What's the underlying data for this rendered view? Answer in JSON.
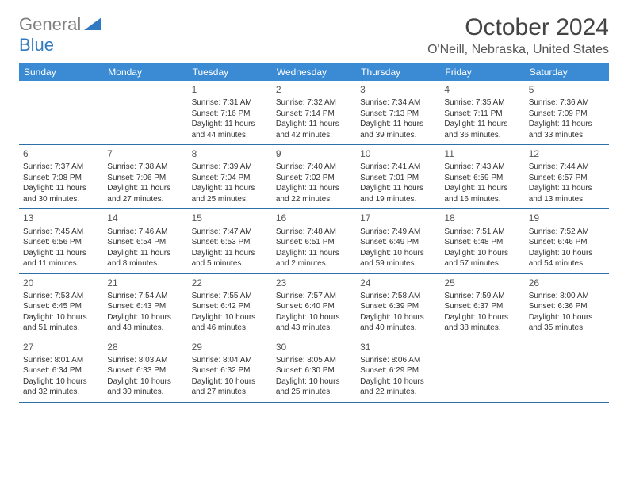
{
  "logo": {
    "general": "General",
    "blue": "Blue"
  },
  "title": "October 2024",
  "location": "O'Neill, Nebraska, United States",
  "header_bg": "#3b8bd4",
  "border_color": "#2f6fa8",
  "day_headers": [
    "Sunday",
    "Monday",
    "Tuesday",
    "Wednesday",
    "Thursday",
    "Friday",
    "Saturday"
  ],
  "weeks": [
    [
      null,
      null,
      {
        "n": "1",
        "sr": "Sunrise: 7:31 AM",
        "ss": "Sunset: 7:16 PM",
        "dl1": "Daylight: 11 hours",
        "dl2": "and 44 minutes."
      },
      {
        "n": "2",
        "sr": "Sunrise: 7:32 AM",
        "ss": "Sunset: 7:14 PM",
        "dl1": "Daylight: 11 hours",
        "dl2": "and 42 minutes."
      },
      {
        "n": "3",
        "sr": "Sunrise: 7:34 AM",
        "ss": "Sunset: 7:13 PM",
        "dl1": "Daylight: 11 hours",
        "dl2": "and 39 minutes."
      },
      {
        "n": "4",
        "sr": "Sunrise: 7:35 AM",
        "ss": "Sunset: 7:11 PM",
        "dl1": "Daylight: 11 hours",
        "dl2": "and 36 minutes."
      },
      {
        "n": "5",
        "sr": "Sunrise: 7:36 AM",
        "ss": "Sunset: 7:09 PM",
        "dl1": "Daylight: 11 hours",
        "dl2": "and 33 minutes."
      }
    ],
    [
      {
        "n": "6",
        "sr": "Sunrise: 7:37 AM",
        "ss": "Sunset: 7:08 PM",
        "dl1": "Daylight: 11 hours",
        "dl2": "and 30 minutes."
      },
      {
        "n": "7",
        "sr": "Sunrise: 7:38 AM",
        "ss": "Sunset: 7:06 PM",
        "dl1": "Daylight: 11 hours",
        "dl2": "and 27 minutes."
      },
      {
        "n": "8",
        "sr": "Sunrise: 7:39 AM",
        "ss": "Sunset: 7:04 PM",
        "dl1": "Daylight: 11 hours",
        "dl2": "and 25 minutes."
      },
      {
        "n": "9",
        "sr": "Sunrise: 7:40 AM",
        "ss": "Sunset: 7:02 PM",
        "dl1": "Daylight: 11 hours",
        "dl2": "and 22 minutes."
      },
      {
        "n": "10",
        "sr": "Sunrise: 7:41 AM",
        "ss": "Sunset: 7:01 PM",
        "dl1": "Daylight: 11 hours",
        "dl2": "and 19 minutes."
      },
      {
        "n": "11",
        "sr": "Sunrise: 7:43 AM",
        "ss": "Sunset: 6:59 PM",
        "dl1": "Daylight: 11 hours",
        "dl2": "and 16 minutes."
      },
      {
        "n": "12",
        "sr": "Sunrise: 7:44 AM",
        "ss": "Sunset: 6:57 PM",
        "dl1": "Daylight: 11 hours",
        "dl2": "and 13 minutes."
      }
    ],
    [
      {
        "n": "13",
        "sr": "Sunrise: 7:45 AM",
        "ss": "Sunset: 6:56 PM",
        "dl1": "Daylight: 11 hours",
        "dl2": "and 11 minutes."
      },
      {
        "n": "14",
        "sr": "Sunrise: 7:46 AM",
        "ss": "Sunset: 6:54 PM",
        "dl1": "Daylight: 11 hours",
        "dl2": "and 8 minutes."
      },
      {
        "n": "15",
        "sr": "Sunrise: 7:47 AM",
        "ss": "Sunset: 6:53 PM",
        "dl1": "Daylight: 11 hours",
        "dl2": "and 5 minutes."
      },
      {
        "n": "16",
        "sr": "Sunrise: 7:48 AM",
        "ss": "Sunset: 6:51 PM",
        "dl1": "Daylight: 11 hours",
        "dl2": "and 2 minutes."
      },
      {
        "n": "17",
        "sr": "Sunrise: 7:49 AM",
        "ss": "Sunset: 6:49 PM",
        "dl1": "Daylight: 10 hours",
        "dl2": "and 59 minutes."
      },
      {
        "n": "18",
        "sr": "Sunrise: 7:51 AM",
        "ss": "Sunset: 6:48 PM",
        "dl1": "Daylight: 10 hours",
        "dl2": "and 57 minutes."
      },
      {
        "n": "19",
        "sr": "Sunrise: 7:52 AM",
        "ss": "Sunset: 6:46 PM",
        "dl1": "Daylight: 10 hours",
        "dl2": "and 54 minutes."
      }
    ],
    [
      {
        "n": "20",
        "sr": "Sunrise: 7:53 AM",
        "ss": "Sunset: 6:45 PM",
        "dl1": "Daylight: 10 hours",
        "dl2": "and 51 minutes."
      },
      {
        "n": "21",
        "sr": "Sunrise: 7:54 AM",
        "ss": "Sunset: 6:43 PM",
        "dl1": "Daylight: 10 hours",
        "dl2": "and 48 minutes."
      },
      {
        "n": "22",
        "sr": "Sunrise: 7:55 AM",
        "ss": "Sunset: 6:42 PM",
        "dl1": "Daylight: 10 hours",
        "dl2": "and 46 minutes."
      },
      {
        "n": "23",
        "sr": "Sunrise: 7:57 AM",
        "ss": "Sunset: 6:40 PM",
        "dl1": "Daylight: 10 hours",
        "dl2": "and 43 minutes."
      },
      {
        "n": "24",
        "sr": "Sunrise: 7:58 AM",
        "ss": "Sunset: 6:39 PM",
        "dl1": "Daylight: 10 hours",
        "dl2": "and 40 minutes."
      },
      {
        "n": "25",
        "sr": "Sunrise: 7:59 AM",
        "ss": "Sunset: 6:37 PM",
        "dl1": "Daylight: 10 hours",
        "dl2": "and 38 minutes."
      },
      {
        "n": "26",
        "sr": "Sunrise: 8:00 AM",
        "ss": "Sunset: 6:36 PM",
        "dl1": "Daylight: 10 hours",
        "dl2": "and 35 minutes."
      }
    ],
    [
      {
        "n": "27",
        "sr": "Sunrise: 8:01 AM",
        "ss": "Sunset: 6:34 PM",
        "dl1": "Daylight: 10 hours",
        "dl2": "and 32 minutes."
      },
      {
        "n": "28",
        "sr": "Sunrise: 8:03 AM",
        "ss": "Sunset: 6:33 PM",
        "dl1": "Daylight: 10 hours",
        "dl2": "and 30 minutes."
      },
      {
        "n": "29",
        "sr": "Sunrise: 8:04 AM",
        "ss": "Sunset: 6:32 PM",
        "dl1": "Daylight: 10 hours",
        "dl2": "and 27 minutes."
      },
      {
        "n": "30",
        "sr": "Sunrise: 8:05 AM",
        "ss": "Sunset: 6:30 PM",
        "dl1": "Daylight: 10 hours",
        "dl2": "and 25 minutes."
      },
      {
        "n": "31",
        "sr": "Sunrise: 8:06 AM",
        "ss": "Sunset: 6:29 PM",
        "dl1": "Daylight: 10 hours",
        "dl2": "and 22 minutes."
      },
      null,
      null
    ]
  ]
}
